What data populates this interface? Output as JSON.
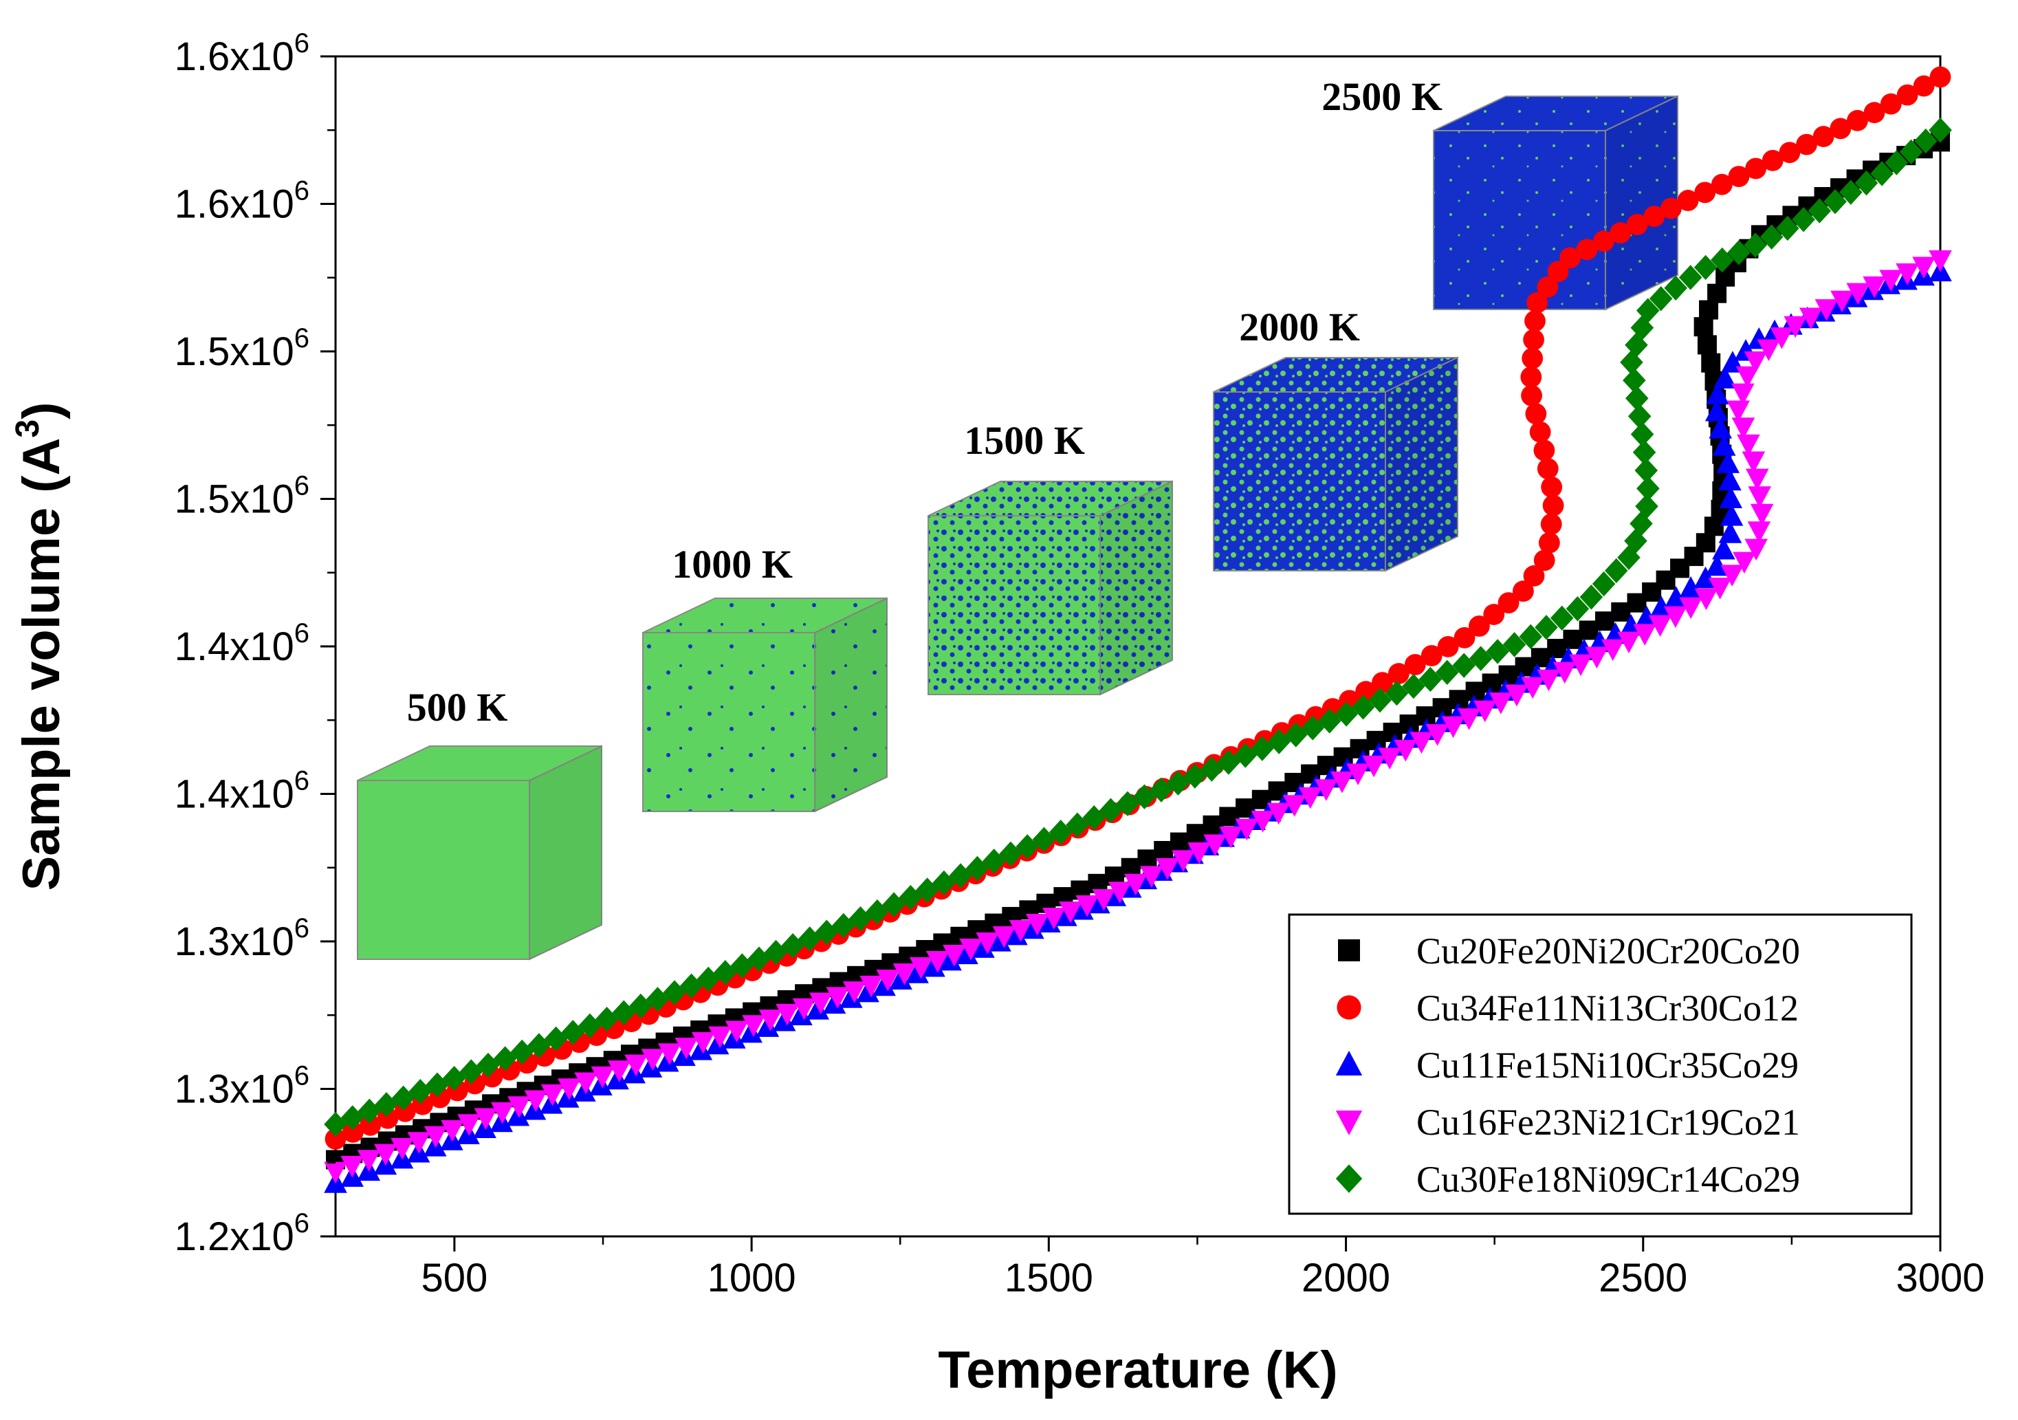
{
  "chart_data": {
    "type": "scatter",
    "title": "",
    "xlabel": "Temperature (K)",
    "ylabel_main": "Sample volume (A",
    "ylabel_sup": "3",
    "ylabel_close": ")",
    "xlim": [
      300,
      3000
    ],
    "ylim": [
      1200000,
      1600000
    ],
    "grid": false,
    "legend_position": "bottom-right",
    "x_ticks": [
      {
        "value": 500,
        "label": "500"
      },
      {
        "value": 1000,
        "label": "1000"
      },
      {
        "value": 1500,
        "label": "1500"
      },
      {
        "value": 2000,
        "label": "2000"
      },
      {
        "value": 2500,
        "label": "2500"
      },
      {
        "value": 3000,
        "label": "3000"
      }
    ],
    "y_ticks": [
      {
        "value": 1200000,
        "base": "1.2x10",
        "exp": "6"
      },
      {
        "value": 1250000,
        "base": "1.3x10",
        "exp": "6"
      },
      {
        "value": 1300000,
        "base": "1.3x10",
        "exp": "6"
      },
      {
        "value": 1350000,
        "base": "1.4x10",
        "exp": "6"
      },
      {
        "value": 1400000,
        "base": "1.4x10",
        "exp": "6"
      },
      {
        "value": 1450000,
        "base": "1.5x10",
        "exp": "6"
      },
      {
        "value": 1500000,
        "base": "1.5x10",
        "exp": "6"
      },
      {
        "value": 1550000,
        "base": "1.6x10",
        "exp": "6"
      },
      {
        "value": 1600000,
        "base": "1.6x10",
        "exp": "6"
      }
    ],
    "series": [
      {
        "name": "Cu20Fe20Ni20Cr20Co20",
        "marker": "square",
        "color": "#000000",
        "knots": [
          [
            300,
            1226000
          ],
          [
            800,
            1262000
          ],
          [
            1200,
            1290000
          ],
          [
            1600,
            1321000
          ],
          [
            2000,
            1363000
          ],
          [
            2300,
            1393000
          ],
          [
            2500,
            1416000
          ],
          [
            2600,
            1433000
          ],
          [
            2630,
            1445000
          ],
          [
            2635,
            1460000
          ],
          [
            2620,
            1490000
          ],
          [
            2600,
            1510000
          ],
          [
            2640,
            1526000
          ],
          [
            2700,
            1540000
          ],
          [
            2800,
            1552000
          ],
          [
            2900,
            1563000
          ],
          [
            3000,
            1571000
          ]
        ],
        "count": 112
      },
      {
        "name": "Cu34Fe11Ni13Cr30Co12",
        "marker": "circle",
        "color": "#ff0000",
        "knots": [
          [
            300,
            1233000
          ],
          [
            800,
            1273000
          ],
          [
            1200,
            1307000
          ],
          [
            1600,
            1343000
          ],
          [
            2000,
            1381000
          ],
          [
            2200,
            1403000
          ],
          [
            2300,
            1419000
          ],
          [
            2340,
            1431000
          ],
          [
            2350,
            1450000
          ],
          [
            2330,
            1470000
          ],
          [
            2310,
            1487000
          ],
          [
            2320,
            1516000
          ],
          [
            2370,
            1531000
          ],
          [
            2500,
            1544000
          ],
          [
            2700,
            1563000
          ],
          [
            2900,
            1582000
          ],
          [
            3000,
            1593000
          ]
        ],
        "count": 112
      },
      {
        "name": "Cu11Fe15Ni10Cr35Co29",
        "marker": "triangle-up",
        "color": "#0000ff",
        "knots": [
          [
            300,
            1218000
          ],
          [
            800,
            1255000
          ],
          [
            1200,
            1283000
          ],
          [
            1600,
            1314000
          ],
          [
            2000,
            1358000
          ],
          [
            2300,
            1388000
          ],
          [
            2500,
            1409000
          ],
          [
            2620,
            1425000
          ],
          [
            2650,
            1440000
          ],
          [
            2645,
            1460000
          ],
          [
            2620,
            1483000
          ],
          [
            2650,
            1496000
          ],
          [
            2700,
            1505000
          ],
          [
            2800,
            1513000
          ],
          [
            2900,
            1522000
          ],
          [
            3000,
            1527000
          ]
        ],
        "count": 112
      },
      {
        "name": "Cu16Fe23Ni21Cr19Co21",
        "marker": "triangle-down",
        "color": "#ff00ff",
        "knots": [
          [
            300,
            1222000
          ],
          [
            800,
            1258000
          ],
          [
            1200,
            1285000
          ],
          [
            1600,
            1315000
          ],
          [
            2000,
            1355000
          ],
          [
            2300,
            1385000
          ],
          [
            2500,
            1404000
          ],
          [
            2620,
            1418000
          ],
          [
            2690,
            1433000
          ],
          [
            2700,
            1445000
          ],
          [
            2690,
            1460000
          ],
          [
            2660,
            1480000
          ],
          [
            2680,
            1495000
          ],
          [
            2750,
            1508000
          ],
          [
            2850,
            1519000
          ],
          [
            2950,
            1527000
          ],
          [
            3000,
            1531000
          ]
        ],
        "count": 112
      },
      {
        "name": "Cu30Fe18Ni09Cr14Co29",
        "marker": "diamond",
        "color": "#008000",
        "knots": [
          [
            300,
            1238000
          ],
          [
            800,
            1277000
          ],
          [
            1200,
            1309000
          ],
          [
            1600,
            1344000
          ],
          [
            2000,
            1377000
          ],
          [
            2300,
            1402000
          ],
          [
            2400,
            1414000
          ],
          [
            2480,
            1431000
          ],
          [
            2510,
            1450000
          ],
          [
            2500,
            1470000
          ],
          [
            2480,
            1497000
          ],
          [
            2510,
            1515000
          ],
          [
            2600,
            1528000
          ],
          [
            2700,
            1537000
          ],
          [
            2800,
            1548000
          ],
          [
            2900,
            1560000
          ],
          [
            3000,
            1575000
          ]
        ],
        "count": 112
      }
    ],
    "annotations": [
      {
        "label": "500 K",
        "phase": "solid"
      },
      {
        "label": "1000 K",
        "phase": "mostly-solid"
      },
      {
        "label": "1500 K",
        "phase": "mixed"
      },
      {
        "label": "2000 K",
        "phase": "mostly-liquid"
      },
      {
        "label": "2500 K",
        "phase": "liquid"
      }
    ]
  },
  "colors": {
    "solid_phase": "#5fd35f",
    "liquid_phase": "#1530c8",
    "cube_edge": "#888888"
  }
}
